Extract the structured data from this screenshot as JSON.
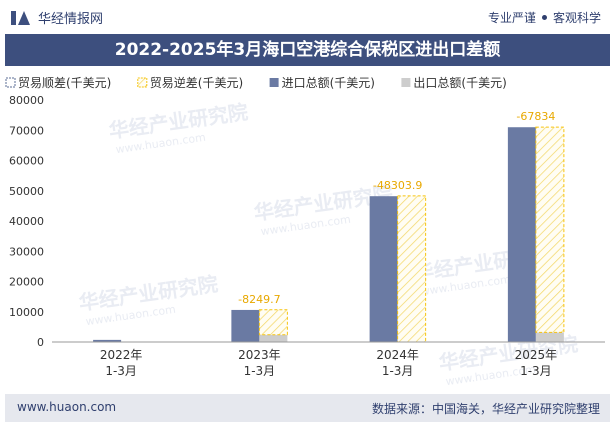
{
  "header": {
    "brand": "华经情报网",
    "tagline_left": "专业严谨",
    "tagline_right": "客观科学"
  },
  "title": "2022-2025年3月海口空港综合保税区进出口差额",
  "watermark": {
    "text": "华经产业研究院",
    "url": "www.huaon.com"
  },
  "footer": {
    "url": "www.huaon.com",
    "source": "数据来源：中国海关，华经产业研究院整理"
  },
  "chart_data": {
    "type": "bar",
    "title": "2022-2025年3月海口空港综合保税区进出口差额",
    "categories": [
      "2022年\n1-3月",
      "2023年\n1-3月",
      "2024年\n1-3月",
      "2025年\n1-3月"
    ],
    "series": [
      {
        "name": "贸易顺差(千美元)",
        "values": [
          0,
          0,
          0,
          0
        ],
        "color": "#5b6d96",
        "style": "outline"
      },
      {
        "name": "贸易逆差(千美元)",
        "values": [
          0,
          8249.7,
          48303.9,
          67834
        ],
        "color": "#f6c40f",
        "style": "hatch"
      },
      {
        "name": "进口总额(千美元)",
        "values": [
          700,
          10600,
          48200,
          71000
        ],
        "color": "#6a7aa3",
        "style": "solid"
      },
      {
        "name": "出口总额(千美元)",
        "values": [
          0,
          2400,
          0,
          3200
        ],
        "color": "#cdcdcd",
        "style": "solid"
      }
    ],
    "data_labels": [
      "",
      "-8249.7",
      "-48303.9",
      "-67834"
    ],
    "ylim": [
      0,
      80000
    ],
    "yticks": [
      "0",
      "10000",
      "20000",
      "30000",
      "40000",
      "50000",
      "60000",
      "70000",
      "80000"
    ],
    "xlabel": "",
    "ylabel": "",
    "legend": "top-left"
  }
}
